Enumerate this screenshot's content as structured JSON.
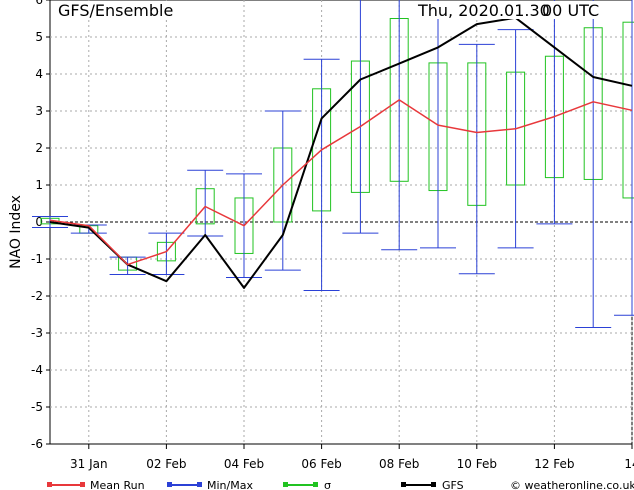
{
  "header": {
    "title": "GFS/Ensemble",
    "run": "Thu, 2020.01.30",
    "cycle": "00 UTC"
  },
  "footer": {
    "credit": "© weatheronline.co.uk"
  },
  "chart_data": {
    "type": "line",
    "ylabel": "NAO Index",
    "ylim": [
      -6,
      6
    ],
    "yticks": [
      6,
      5,
      4,
      3,
      2,
      1,
      0,
      -1,
      -2,
      -3,
      -4,
      -5,
      -6
    ],
    "x_tick_labels": [
      "31 Jan",
      "02 Feb",
      "04 Feb",
      "06 Feb",
      "08 Feb",
      "10 Feb",
      "12 Feb",
      "14"
    ],
    "grid": true,
    "legend": {
      "placement": "bottom",
      "entries": [
        {
          "label": "Mean Run",
          "color": "#e8383b"
        },
        {
          "label": "Min/Max",
          "color": "#2b41d6"
        },
        {
          "label": "σ",
          "color": "#21c321"
        },
        {
          "label": "GFS",
          "color": "#000000"
        }
      ]
    },
    "colors": {
      "mean": "#e8383b",
      "minmax": "#2b41d6",
      "sigma": "#21c321",
      "gfs": "#000000",
      "zero_line": "#000000",
      "grid": "#aaaaaa"
    },
    "series": [
      {
        "name": "Mean Run",
        "values": [
          0.05,
          -0.1,
          -1.15,
          -0.8,
          0.42,
          -0.1,
          1.0,
          1.95,
          2.58,
          3.3,
          2.62,
          2.42,
          2.52,
          2.85,
          3.25,
          3.02
        ]
      },
      {
        "name": "GFS",
        "values": [
          0.0,
          -0.15,
          -1.15,
          -1.6,
          -0.35,
          -1.78,
          -0.35,
          2.8,
          3.85,
          4.28,
          4.72,
          5.35,
          5.52,
          4.72,
          3.92,
          3.68
        ]
      }
    ],
    "sigma": {
      "lower": [
        -0.05,
        -0.3,
        -1.3,
        -1.05,
        -0.05,
        -0.85,
        0.0,
        0.3,
        0.8,
        1.1,
        0.85,
        0.45,
        1.0,
        1.2,
        1.15,
        0.65
      ],
      "upper": [
        0.1,
        -0.1,
        -0.95,
        -0.55,
        0.9,
        0.65,
        2.0,
        3.6,
        4.35,
        5.5,
        4.3,
        4.3,
        4.05,
        4.48,
        5.25,
        5.4
      ]
    },
    "minmax": {
      "min": [
        -0.15,
        -0.3,
        -1.42,
        -1.42,
        -0.38,
        -1.5,
        -1.3,
        -1.85,
        -0.3,
        -0.75,
        -0.7,
        -1.4,
        -0.7,
        -0.05,
        -2.85,
        -2.52
      ],
      "max": [
        0.15,
        -0.08,
        -0.95,
        -0.3,
        1.4,
        1.3,
        3.0,
        4.4,
        6.0,
        6.0,
        6.0,
        4.8,
        5.2,
        6.0,
        6.0,
        6.0
      ]
    }
  }
}
